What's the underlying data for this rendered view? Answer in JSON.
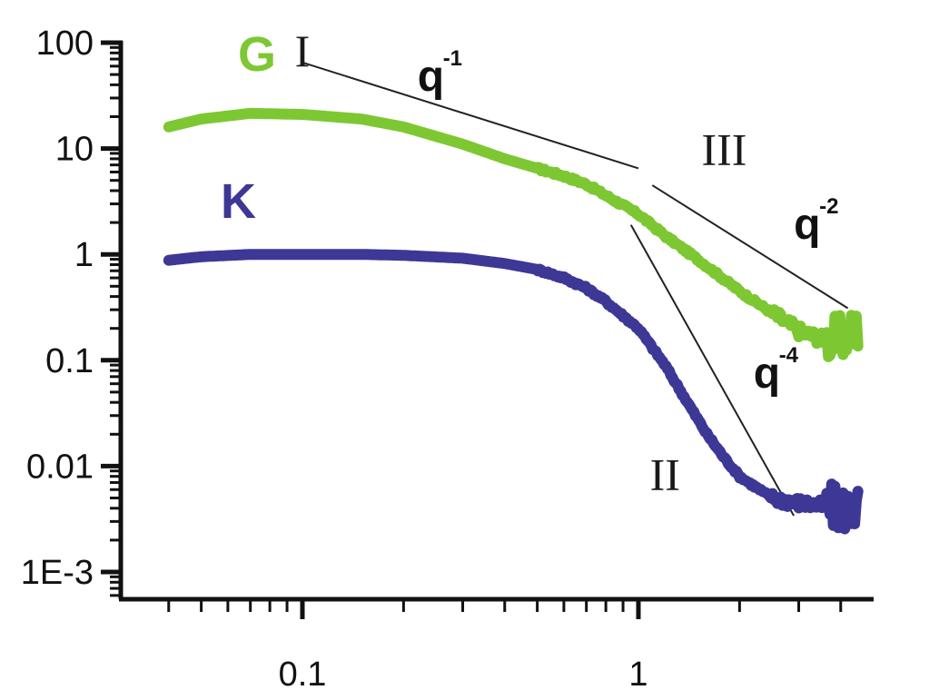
{
  "chart_data": {
    "type": "line",
    "xscale": "log",
    "yscale": "log",
    "xlim": [
      0.04,
      4.6
    ],
    "ylim": [
      0.0005,
      110
    ],
    "x_ticks": [
      {
        "value": 0.1,
        "label": "0.1"
      },
      {
        "value": 1,
        "label": "1"
      }
    ],
    "y_ticks": [
      {
        "value": 100,
        "label": "100"
      },
      {
        "value": 10,
        "label": "10"
      },
      {
        "value": 1,
        "label": "1"
      },
      {
        "value": 0.1,
        "label": "0.1"
      },
      {
        "value": 0.01,
        "label": "0.01"
      },
      {
        "value": 0.001,
        "label": "1E-3"
      }
    ],
    "series": [
      {
        "name": "G",
        "color": "#7dc832",
        "x": [
          0.04,
          0.05,
          0.07,
          0.1,
          0.15,
          0.2,
          0.3,
          0.4,
          0.5,
          0.6,
          0.7,
          0.8,
          1.0,
          1.2,
          1.5,
          2.0,
          2.5,
          3.0,
          3.5,
          4.0,
          4.5
        ],
        "y": [
          16,
          19,
          21.5,
          21,
          19,
          16,
          11,
          8,
          6.5,
          5.5,
          4.6,
          3.6,
          2.4,
          1.5,
          0.9,
          0.45,
          0.28,
          0.19,
          0.16,
          0.16,
          0.2
        ]
      },
      {
        "name": "K",
        "color": "#3d3796",
        "x": [
          0.04,
          0.05,
          0.07,
          0.1,
          0.15,
          0.2,
          0.3,
          0.4,
          0.5,
          0.6,
          0.7,
          0.8,
          1.0,
          1.2,
          1.4,
          1.6,
          1.8,
          2.0,
          2.5,
          3.0,
          3.5,
          4.0,
          4.5
        ],
        "y": [
          0.88,
          0.95,
          1.0,
          1.0,
          1.0,
          0.98,
          0.92,
          0.82,
          0.72,
          0.6,
          0.48,
          0.36,
          0.2,
          0.09,
          0.04,
          0.02,
          0.012,
          0.008,
          0.005,
          0.0045,
          0.0042,
          0.004,
          0.004
        ]
      }
    ],
    "annotations": [
      {
        "text": "I",
        "x": 0.1,
        "y": 60
      },
      {
        "text": "q",
        "sup": "-1",
        "x": 0.22,
        "y": 35
      },
      {
        "text": "III",
        "x": 1.8,
        "y": 7
      },
      {
        "text": "q",
        "sup": "-2",
        "x": 2.9,
        "y": 1.4
      },
      {
        "text": "q",
        "sup": "-4",
        "x": 2.2,
        "y": 0.055
      },
      {
        "text": "II",
        "x": 1.2,
        "y": 0.006
      }
    ],
    "guide_lines": [
      {
        "x1": 0.1,
        "y1": 65,
        "x2": 1.0,
        "y2": 6.5
      },
      {
        "x1": 1.1,
        "y1": 4.5,
        "x2": 4.2,
        "y2": 0.31
      },
      {
        "x1": 0.95,
        "y1": 1.9,
        "x2": 2.9,
        "y2": 0.0034
      }
    ],
    "grid": false,
    "legend": "inline-labels"
  }
}
